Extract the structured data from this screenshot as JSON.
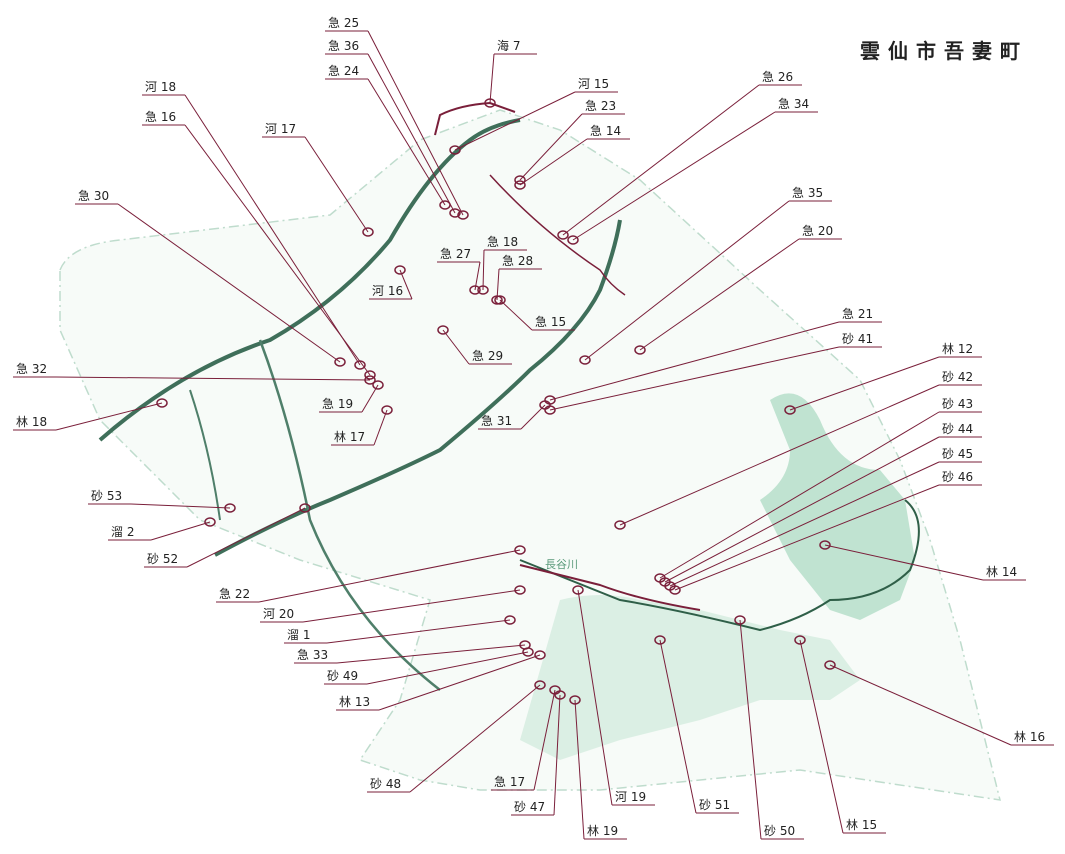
{
  "header": {
    "title": "雲仙市吾妻町"
  },
  "map_texts": [
    "長谷川"
  ],
  "labels": [
    "急 25",
    "急 36",
    "急 24",
    "海 7",
    "河 15",
    "急 23",
    "急 14",
    "河 18",
    "急 16",
    "河 17",
    "急 26",
    "急 34",
    "急 30",
    "急 35",
    "急 20",
    "急 27",
    "急 18",
    "急 28",
    "河 16",
    "急 15",
    "急 29",
    "急 21",
    "砂 41",
    "林 12",
    "急 32",
    "急 19",
    "林 18",
    "林 17",
    "急 31",
    "砂 42",
    "砂 43",
    "砂 44",
    "砂 45",
    "砂 46",
    "砂 53",
    "溜 2",
    "砂 52",
    "林 14",
    "急 22",
    "河 20",
    "溜 1",
    "急 33",
    "砂 49",
    "林 13",
    "林 16",
    "砂 48",
    "急 17",
    "河 19",
    "砂 51",
    "砂 47",
    "林 19",
    "砂 50",
    "林 15"
  ]
}
